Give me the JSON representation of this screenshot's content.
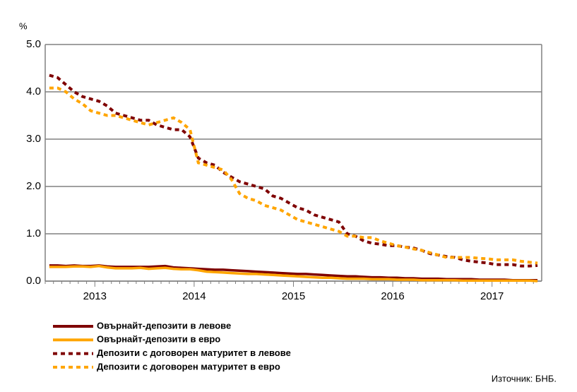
{
  "chart_data": {
    "type": "line",
    "y_label": "%",
    "source": "Източник: БНБ.",
    "categories": [
      null,
      null,
      null,
      null,
      null,
      null,
      "2013",
      null,
      null,
      null,
      null,
      null,
      null,
      null,
      null,
      null,
      null,
      null,
      "2014",
      null,
      null,
      null,
      null,
      null,
      null,
      null,
      null,
      null,
      null,
      null,
      "2015",
      null,
      null,
      null,
      null,
      null,
      null,
      null,
      null,
      null,
      null,
      null,
      "2016",
      null,
      null,
      null,
      null,
      null,
      null,
      null,
      null,
      null,
      null,
      null,
      "2017",
      null,
      null,
      null,
      null,
      null
    ],
    "ylim": [
      0,
      5
    ],
    "yticks": [
      {
        "value": 0,
        "label": "0.0"
      },
      {
        "value": 1,
        "label": "1.0"
      },
      {
        "value": 2,
        "label": "2.0"
      },
      {
        "value": 3,
        "label": "3.0"
      },
      {
        "value": 4,
        "label": "4.0"
      },
      {
        "value": 5,
        "label": "5.0"
      }
    ],
    "grid": true,
    "series": [
      {
        "name": "Овърнайт-депозити в левове",
        "color": "#7f0000",
        "dashed": false,
        "values": [
          0.33,
          0.33,
          0.32,
          0.33,
          0.32,
          0.32,
          0.33,
          0.31,
          0.3,
          0.3,
          0.3,
          0.3,
          0.3,
          0.31,
          0.32,
          0.29,
          0.28,
          0.27,
          0.26,
          0.25,
          0.24,
          0.24,
          0.23,
          0.22,
          0.21,
          0.2,
          0.19,
          0.18,
          0.17,
          0.16,
          0.15,
          0.15,
          0.14,
          0.13,
          0.12,
          0.11,
          0.1,
          0.1,
          0.09,
          0.08,
          0.08,
          0.07,
          0.07,
          0.06,
          0.06,
          0.05,
          0.05,
          0.05,
          0.04,
          0.04,
          0.04,
          0.04,
          0.03,
          0.03,
          0.03,
          0.03,
          0.02,
          0.02,
          0.02,
          0.02
        ]
      },
      {
        "name": "Овърнайт-депозити в евро",
        "color": "#ffa500",
        "dashed": false,
        "values": [
          0.3,
          0.3,
          0.3,
          0.31,
          0.31,
          0.3,
          0.32,
          0.29,
          0.27,
          0.27,
          0.27,
          0.28,
          0.26,
          0.27,
          0.28,
          0.26,
          0.25,
          0.25,
          0.23,
          0.2,
          0.19,
          0.18,
          0.17,
          0.16,
          0.15,
          0.15,
          0.14,
          0.13,
          0.12,
          0.11,
          0.1,
          0.09,
          0.08,
          0.07,
          0.07,
          0.06,
          0.05,
          0.05,
          0.05,
          0.04,
          0.04,
          0.04,
          0.03,
          0.03,
          0.03,
          0.02,
          0.02,
          0.02,
          0.02,
          0.02,
          0.01,
          0.01,
          0.01,
          0.01,
          0.01,
          0.01,
          0.01,
          0.01,
          0.01,
          0.0
        ]
      },
      {
        "name": "Депозити с договорен матуритет в левове",
        "color": "#7f0000",
        "dashed": true,
        "values": [
          4.35,
          4.3,
          4.15,
          4.0,
          3.9,
          3.85,
          3.8,
          3.7,
          3.55,
          3.5,
          3.45,
          3.4,
          3.4,
          3.3,
          3.25,
          3.2,
          3.2,
          3.05,
          2.6,
          2.5,
          2.45,
          2.3,
          2.2,
          2.1,
          2.05,
          2.0,
          1.95,
          1.8,
          1.75,
          1.65,
          1.55,
          1.5,
          1.4,
          1.35,
          1.3,
          1.25,
          1.0,
          0.95,
          0.85,
          0.8,
          0.78,
          0.75,
          0.75,
          0.72,
          0.7,
          0.65,
          0.58,
          0.55,
          0.52,
          0.5,
          0.45,
          0.42,
          0.4,
          0.38,
          0.35,
          0.35,
          0.35,
          0.32,
          0.32,
          0.33
        ]
      },
      {
        "name": "Депозити с договорен матуритет в евро",
        "color": "#ffa500",
        "dashed": true,
        "values": [
          4.08,
          4.08,
          4.0,
          3.85,
          3.75,
          3.6,
          3.55,
          3.5,
          3.5,
          3.45,
          3.4,
          3.35,
          3.3,
          3.35,
          3.4,
          3.45,
          3.35,
          3.2,
          2.5,
          2.45,
          2.4,
          2.35,
          2.15,
          1.85,
          1.75,
          1.7,
          1.6,
          1.55,
          1.5,
          1.4,
          1.3,
          1.25,
          1.2,
          1.15,
          1.1,
          1.05,
          0.95,
          0.95,
          0.92,
          0.92,
          0.85,
          0.8,
          0.75,
          0.72,
          0.68,
          0.65,
          0.6,
          0.55,
          0.5,
          0.5,
          0.5,
          0.5,
          0.48,
          0.47,
          0.45,
          0.45,
          0.45,
          0.42,
          0.4,
          0.38
        ]
      }
    ]
  }
}
